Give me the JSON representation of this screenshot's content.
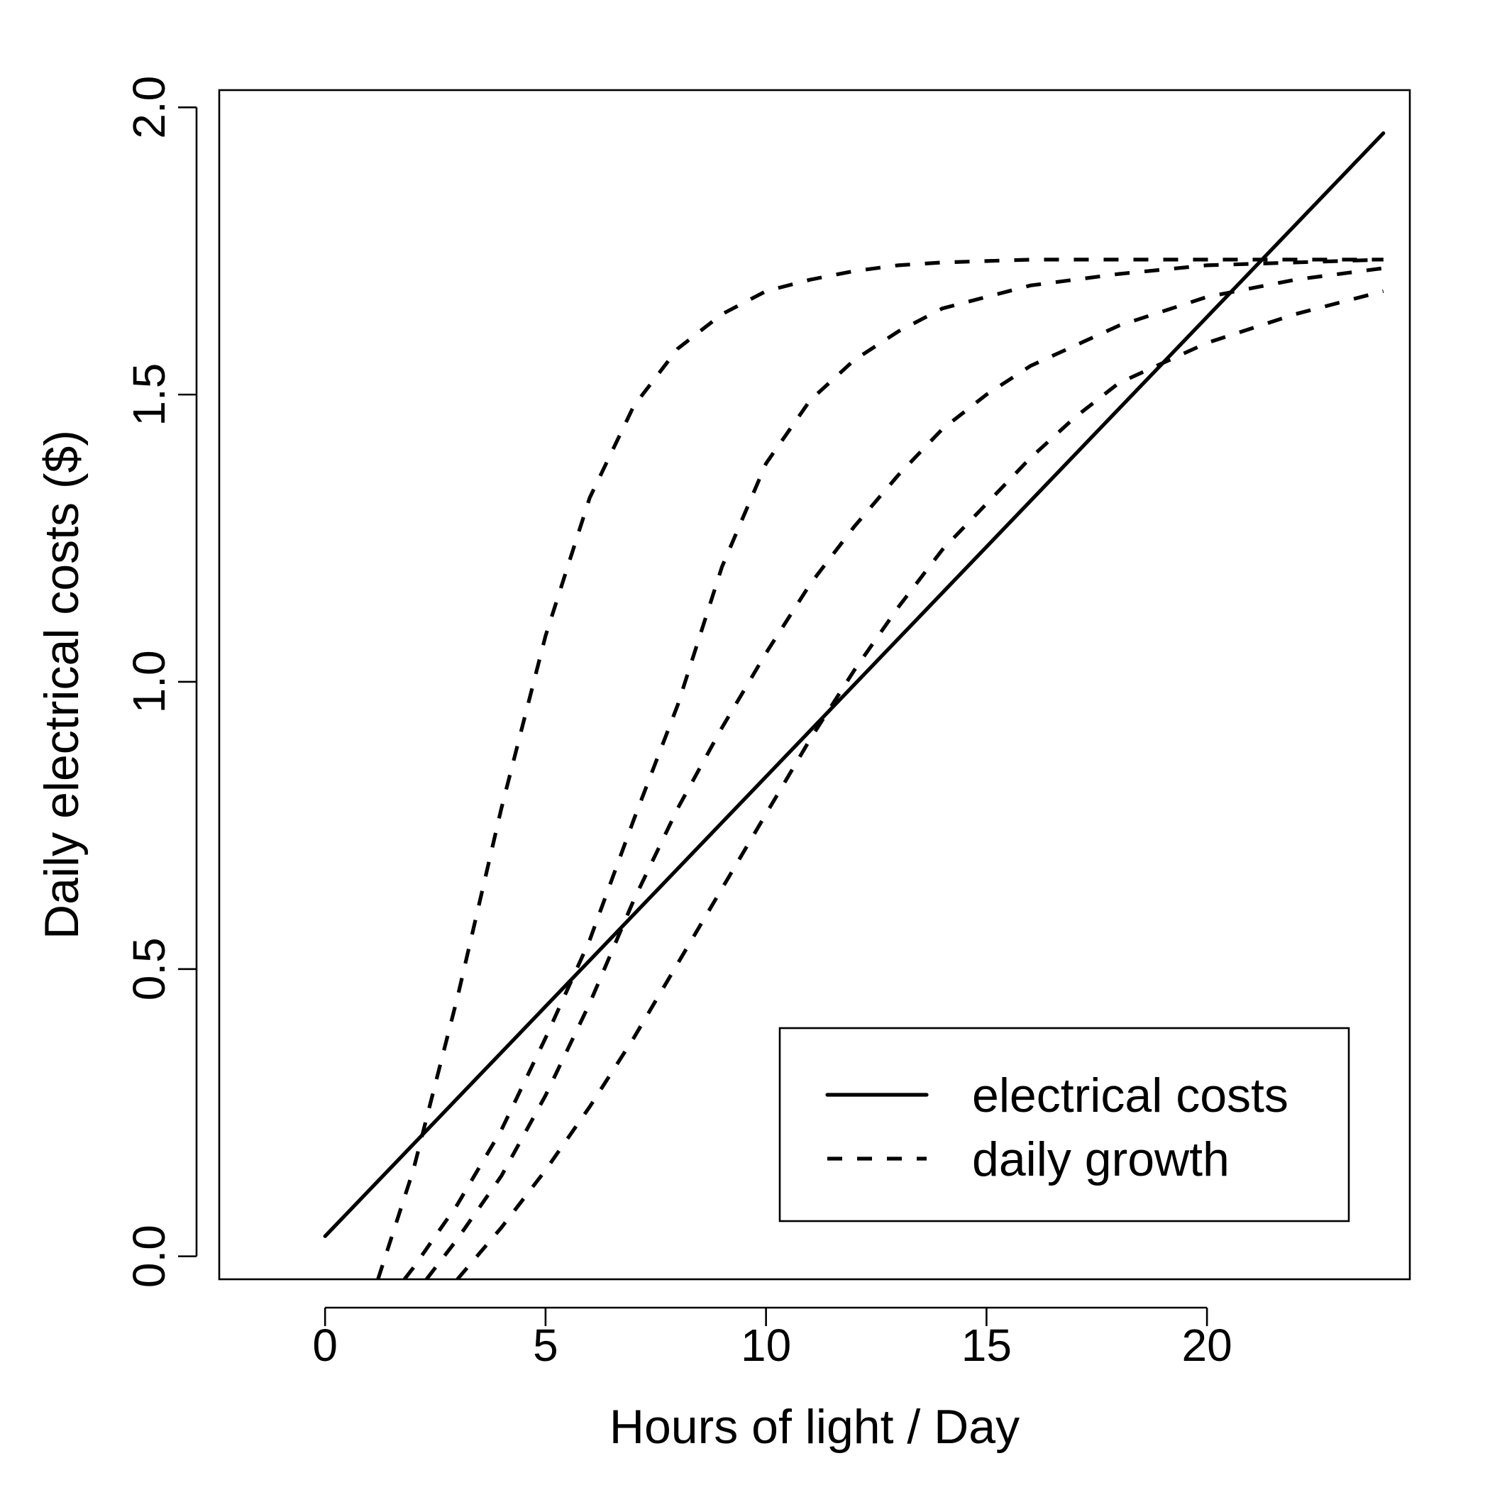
{
  "chart_data": {
    "type": "line",
    "title": "",
    "xlabel": "Hours of light / Day",
    "ylabel": "Daily electrical costs ($)",
    "xlim": [
      -2.4,
      24.6
    ],
    "ylim": [
      -0.04,
      2.03
    ],
    "xticks": [
      0,
      5,
      10,
      15,
      20
    ],
    "xtick_labels": [
      "0",
      "5",
      "10",
      "15",
      "20"
    ],
    "yticks": [
      0.0,
      0.5,
      1.0,
      1.5,
      2.0
    ],
    "ytick_labels": [
      "0.0",
      "0.5",
      "1.0",
      "1.5",
      "2.0"
    ],
    "grid": false,
    "legend_position": "bottom-right",
    "legend": [
      {
        "label": "electrical costs",
        "style": "solid"
      },
      {
        "label": "daily growth",
        "style": "dashed"
      }
    ],
    "series": [
      {
        "name": "electrical costs",
        "style": "solid",
        "x": [
          0,
          24
        ],
        "y": [
          0.035,
          1.955
        ]
      },
      {
        "name": "daily growth",
        "style": "dashed",
        "x": [
          1.2,
          2,
          3,
          4,
          5,
          6,
          7,
          8,
          9,
          10,
          11,
          12,
          13,
          14,
          16,
          18,
          20,
          22,
          24
        ],
        "y": [
          -0.04,
          0.15,
          0.45,
          0.78,
          1.08,
          1.32,
          1.48,
          1.58,
          1.64,
          1.68,
          1.7,
          1.715,
          1.725,
          1.73,
          1.735,
          1.735,
          1.735,
          1.735,
          1.735
        ]
      },
      {
        "name": "daily growth",
        "style": "dashed",
        "x": [
          1.8,
          2,
          3,
          4,
          5,
          6,
          7,
          8,
          9,
          10,
          11,
          12,
          13,
          14,
          16,
          18,
          20,
          22,
          24
        ],
        "y": [
          -0.04,
          -0.02,
          0.09,
          0.22,
          0.38,
          0.55,
          0.76,
          0.96,
          1.2,
          1.38,
          1.49,
          1.56,
          1.61,
          1.65,
          1.69,
          1.71,
          1.725,
          1.73,
          1.735
        ]
      },
      {
        "name": "daily growth",
        "style": "dashed",
        "x": [
          2.3,
          3,
          4,
          5,
          6,
          7,
          8,
          9,
          10,
          11,
          12,
          13,
          14,
          15,
          16,
          18,
          20,
          22,
          24
        ],
        "y": [
          -0.04,
          0.03,
          0.14,
          0.28,
          0.44,
          0.62,
          0.78,
          0.92,
          1.05,
          1.17,
          1.27,
          1.36,
          1.44,
          1.5,
          1.55,
          1.62,
          1.67,
          1.7,
          1.72
        ]
      },
      {
        "name": "daily growth",
        "style": "dashed",
        "x": [
          3.0,
          4,
          5,
          6,
          7,
          8,
          9,
          10,
          11,
          12,
          13,
          14,
          15,
          16,
          17,
          18,
          20,
          22,
          24
        ],
        "y": [
          -0.04,
          0.05,
          0.15,
          0.26,
          0.38,
          0.51,
          0.64,
          0.77,
          0.9,
          1.02,
          1.13,
          1.23,
          1.31,
          1.39,
          1.46,
          1.52,
          1.59,
          1.64,
          1.68
        ]
      }
    ]
  }
}
